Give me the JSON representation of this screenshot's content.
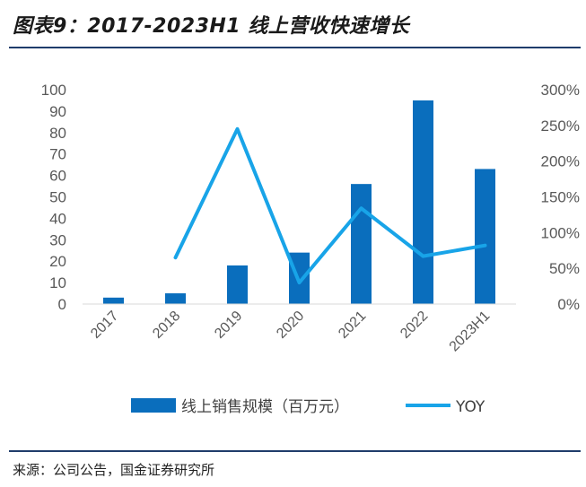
{
  "header": {
    "title": "图表9：2017-2023H1 线上营收快速增长"
  },
  "footer": {
    "source": "来源：公司公告，国金证券研究所"
  },
  "colors": {
    "bar": "#0a6ebd",
    "line": "#18a4e8",
    "rule": "#1f3c6b"
  },
  "chart_data": {
    "type": "bar",
    "categories": [
      "2017",
      "2018",
      "2019",
      "2020",
      "2021",
      "2022",
      "2023H1"
    ],
    "series": [
      {
        "name": "线上销售规模（百万元）",
        "type": "bar",
        "axis": "left",
        "values": [
          3,
          5,
          18,
          24,
          56,
          95,
          63
        ]
      },
      {
        "name": "YOY",
        "type": "line",
        "axis": "right",
        "values": [
          null,
          0.65,
          2.45,
          0.3,
          1.34,
          0.67,
          0.82
        ]
      }
    ],
    "left_axis": {
      "ylim": [
        0,
        100
      ],
      "ticks": [
        "0",
        "10",
        "20",
        "30",
        "40",
        "50",
        "60",
        "70",
        "80",
        "90",
        "100"
      ]
    },
    "right_axis": {
      "ylim": [
        0,
        3
      ],
      "ticks": [
        "0%",
        "50%",
        "100%",
        "150%",
        "200%",
        "250%",
        "300%"
      ]
    },
    "legend_position": "bottom",
    "grid": false
  }
}
